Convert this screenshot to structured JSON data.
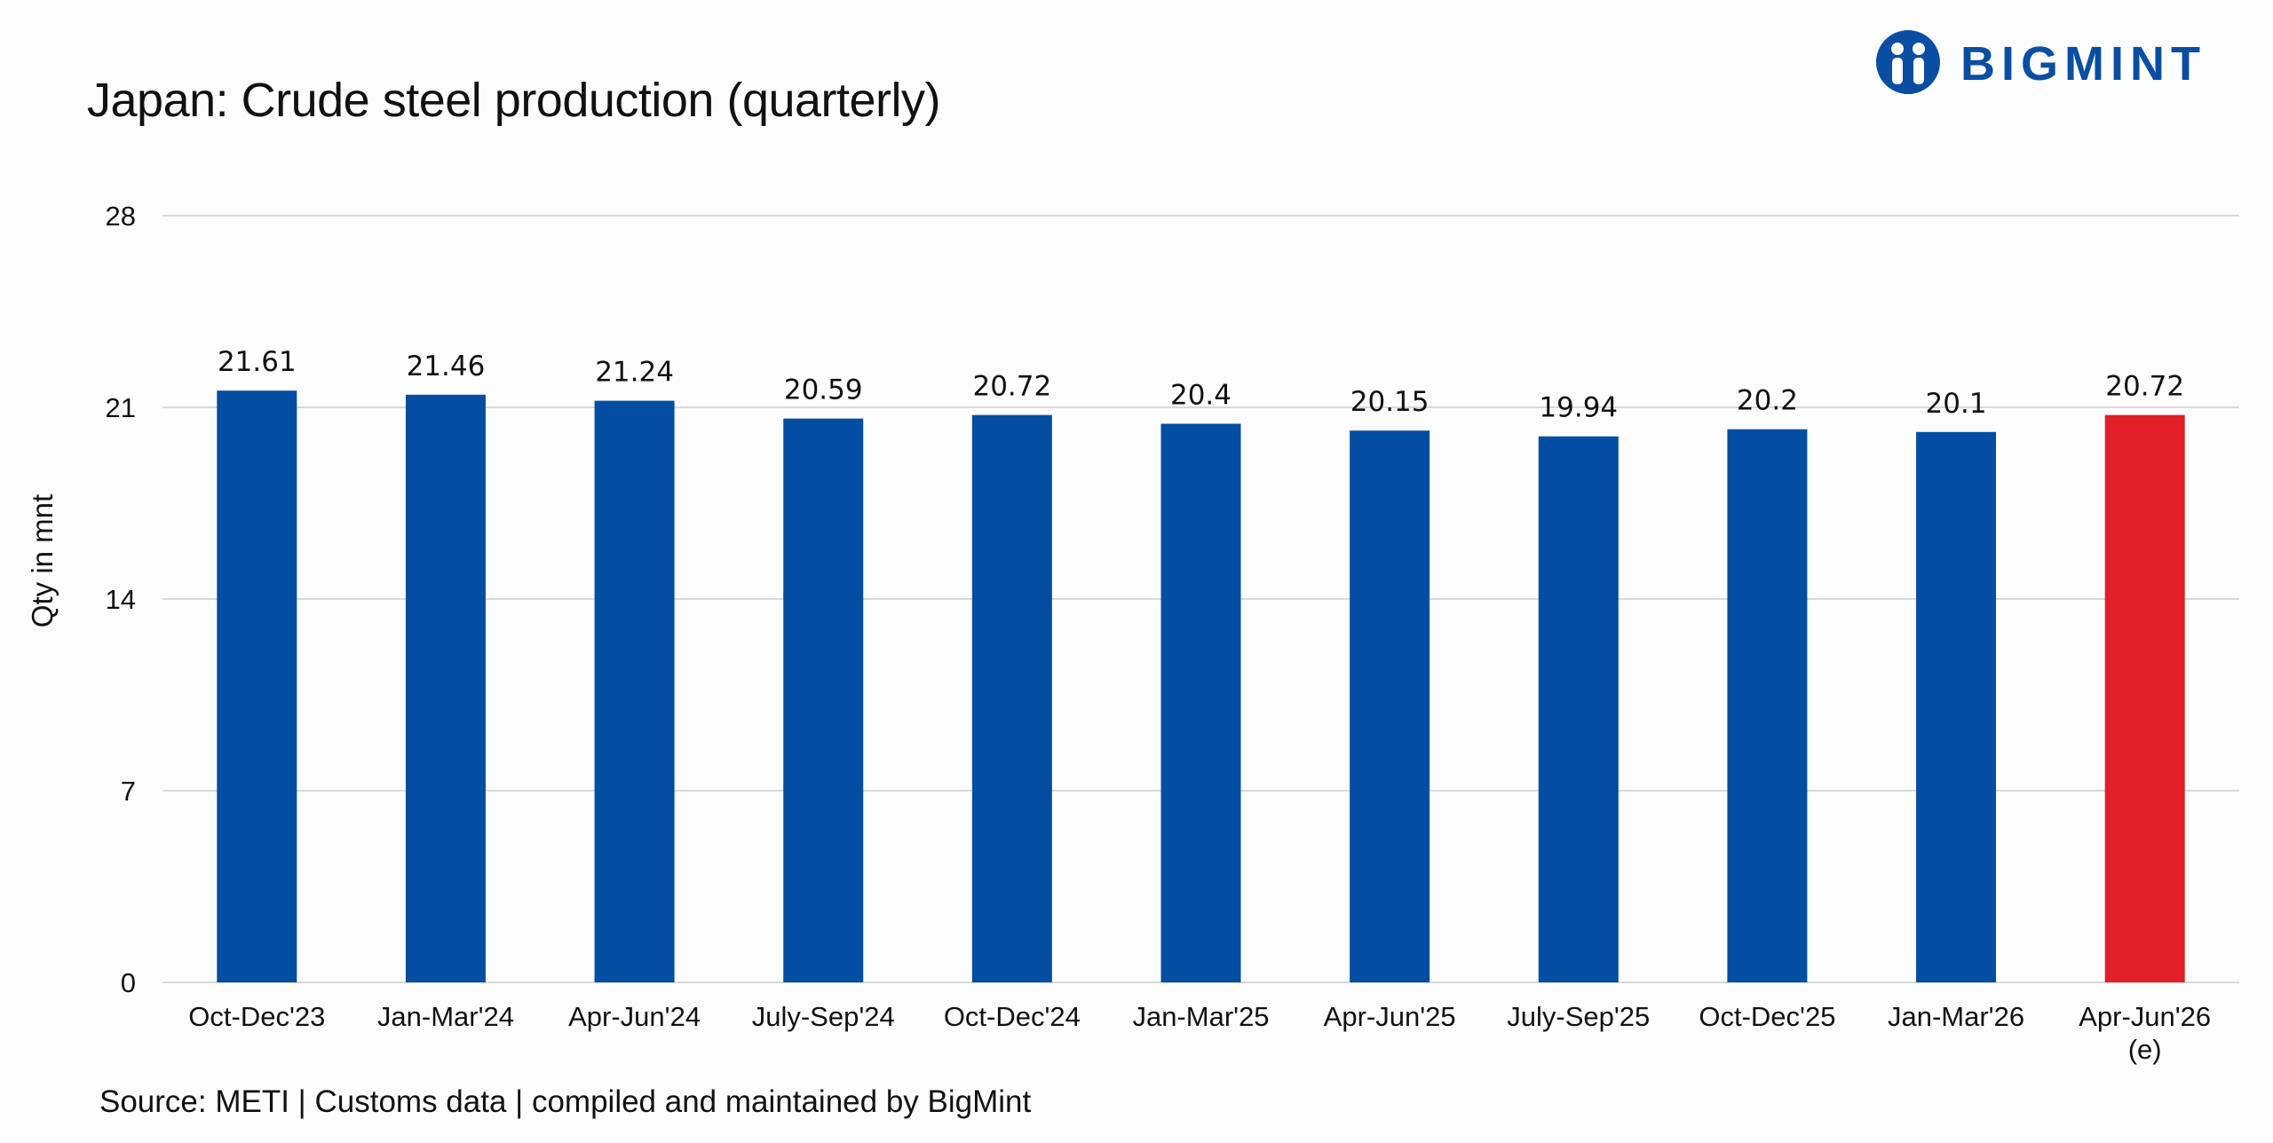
{
  "title": "Japan: Crude steel production (quarterly)",
  "logo": {
    "text": "BIGMINT",
    "icon": "bigmint-people-icon",
    "color": "#0a4ea3"
  },
  "source": "Source: METI | Customs data | compiled and maintained by BigMint",
  "colors": {
    "bar": "#034ea2",
    "highlight": "#e01f26",
    "grid": "#d9d9d9"
  },
  "chart_data": {
    "type": "bar",
    "ylabel": "Qty in mnt",
    "xlabel": "",
    "ylim": [
      0,
      28
    ],
    "yticks": [
      0,
      7,
      14,
      21,
      28
    ],
    "grid": true,
    "categories": [
      [
        "Oct-Dec'23"
      ],
      [
        "Jan-Mar'24"
      ],
      [
        "Apr-Jun'24"
      ],
      [
        "July-Sep'24"
      ],
      [
        "Oct-Dec'24"
      ],
      [
        "Jan-Mar'25"
      ],
      [
        "Apr-Jun'25"
      ],
      [
        "July-Sep'25"
      ],
      [
        "Oct-Dec'25"
      ],
      [
        "Jan-Mar'26"
      ],
      [
        "Apr-Jun'26",
        "(e)"
      ]
    ],
    "values": [
      21.61,
      21.46,
      21.24,
      20.59,
      20.72,
      20.4,
      20.15,
      19.94,
      20.2,
      20.1,
      20.72
    ],
    "highlight_index": 10
  }
}
